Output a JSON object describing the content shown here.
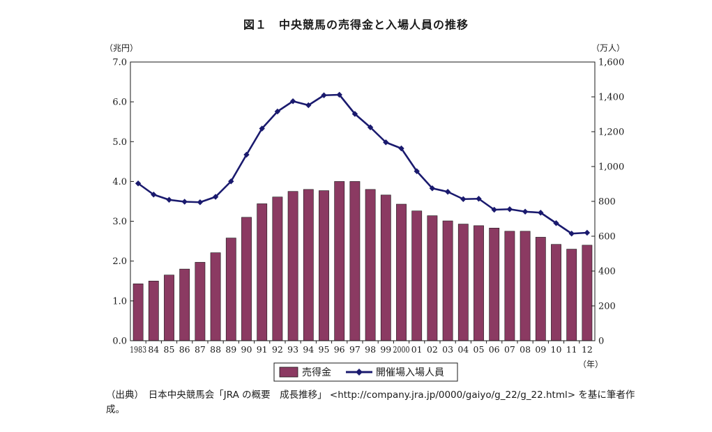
{
  "chart_data": {
    "type": "bar+line",
    "title": "図１　中央競馬の売得金と入場人員の推移",
    "y_left_unit": "（兆円）",
    "y_right_unit": "（万人）",
    "x_unit": "（年）",
    "ylim_left": [
      0,
      7
    ],
    "ylim_right": [
      0,
      1600
    ],
    "y_left_ticks": [
      "0.0",
      "1.0",
      "2.0",
      "3.0",
      "4.0",
      "5.0",
      "6.0",
      "7.0"
    ],
    "y_right_ticks": [
      "0",
      "200",
      "400",
      "600",
      "800",
      "1,000",
      "1,200",
      "1,400",
      "1,600"
    ],
    "categories": [
      "1983",
      "84",
      "85",
      "86",
      "87",
      "88",
      "89",
      "90",
      "91",
      "92",
      "93",
      "94",
      "95",
      "96",
      "97",
      "98",
      "99",
      "2000",
      "01",
      "02",
      "03",
      "04",
      "05",
      "06",
      "07",
      "08",
      "09",
      "10",
      "11",
      "12"
    ],
    "series": [
      {
        "name": "売得金",
        "type": "bar",
        "axis": "left",
        "color": "#8B3A62",
        "values": [
          1.43,
          1.5,
          1.65,
          1.8,
          1.97,
          2.21,
          2.58,
          3.1,
          3.44,
          3.61,
          3.75,
          3.8,
          3.77,
          4.0,
          4.0,
          3.8,
          3.66,
          3.43,
          3.26,
          3.14,
          3.01,
          2.93,
          2.89,
          2.83,
          2.75,
          2.75,
          2.6,
          2.42,
          2.3,
          2.4
        ]
      },
      {
        "name": "開催場入場人員",
        "type": "line",
        "axis": "right",
        "color": "#1a1a6e",
        "values": [
          903,
          839,
          809,
          798,
          795,
          826,
          915,
          1068,
          1218,
          1316,
          1375,
          1352,
          1409,
          1412,
          1302,
          1225,
          1139,
          1104,
          973,
          875,
          855,
          813,
          815,
          752,
          755,
          741,
          735,
          675,
          615,
          620
        ]
      }
    ],
    "grid": false,
    "legend_position": "bottom"
  },
  "source_note": "（出典）　日本中央競馬会「JRA の概要　成長推移」 <http://company.jra.jp/0000/gaiyo/g_22/g_22.html> を基に筆者作成。"
}
